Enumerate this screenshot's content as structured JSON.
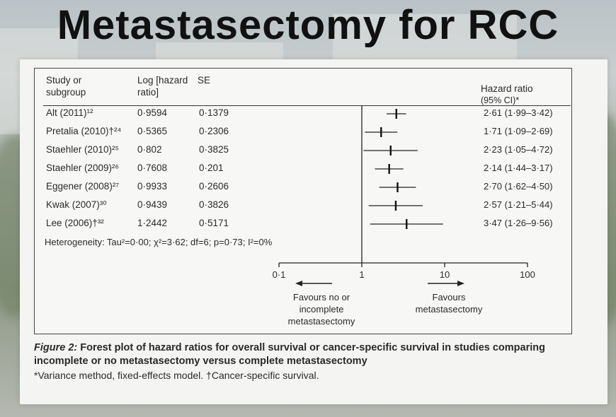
{
  "slide": {
    "title": "Metastasectomy for RCC"
  },
  "table": {
    "headers": {
      "study": [
        "Study or",
        "subgroup"
      ],
      "log_hr": [
        "Log [hazard",
        "ratio]"
      ],
      "se": "SE",
      "hr": [
        "Hazard ratio",
        "(95% CI)*"
      ]
    },
    "rows": [
      {
        "study": "Alt (2011)¹²",
        "log_hr": "0·9594",
        "se": "0·1379",
        "hr_ci": "2·61 (1·99–3·42)"
      },
      {
        "study": "Pretalia (2010)†²⁴",
        "log_hr": "0·5365",
        "se": "0·2306",
        "hr_ci": "1·71 (1·09–2·69)"
      },
      {
        "study": "Staehler (2010)²⁵",
        "log_hr": "0·802",
        "se": "0·3825",
        "hr_ci": "2·23 (1·05–4·72)"
      },
      {
        "study": "Staehler (2009)²⁶",
        "log_hr": "0·7608",
        "se": "0·201",
        "hr_ci": "2·14 (1·44–3·17)"
      },
      {
        "study": "Eggener (2008)²⁷",
        "log_hr": "0·9933",
        "se": "0·2606",
        "hr_ci": "2·70 (1·62–4·50)"
      },
      {
        "study": "Kwak (2007)³⁰",
        "log_hr": "0·9439",
        "se": "0·3826",
        "hr_ci": "2·57 (1·21–5·44)"
      },
      {
        "study": "Lee (2006)†³²",
        "log_hr": "1·2442",
        "se": "0·5171",
        "hr_ci": "3·47 (1·26–9·56)"
      }
    ],
    "heterogeneity": "Heterogeneity: Tau²=0·00; χ²=3·62; df=6; p=0·73; I²=0%"
  },
  "chart_data": {
    "type": "forest",
    "x_scale": "log",
    "xlim": [
      0.1,
      100
    ],
    "x_ticks": [
      0.1,
      1,
      10,
      100
    ],
    "x_tick_labels": [
      "0·1",
      "1",
      "10",
      "100"
    ],
    "reference_line": 1,
    "points": [
      {
        "study": "Alt (2011)",
        "hr": 2.61,
        "lo": 1.99,
        "hi": 3.42
      },
      {
        "study": "Pretalia (2010)",
        "hr": 1.71,
        "lo": 1.09,
        "hi": 2.69
      },
      {
        "study": "Staehler (2010)",
        "hr": 2.23,
        "lo": 1.05,
        "hi": 4.72
      },
      {
        "study": "Staehler (2009)",
        "hr": 2.14,
        "lo": 1.44,
        "hi": 3.17
      },
      {
        "study": "Eggener (2008)",
        "hr": 2.7,
        "lo": 1.62,
        "hi": 4.5
      },
      {
        "study": "Kwak (2007)",
        "hr": 2.57,
        "lo": 1.21,
        "hi": 5.44
      },
      {
        "study": "Lee (2006)",
        "hr": 3.47,
        "lo": 1.26,
        "hi": 9.56
      }
    ],
    "favours_left": [
      "Favours no or",
      "incomplete",
      "metastasectomy"
    ],
    "favours_right": [
      "Favours",
      "metastasectomy"
    ]
  },
  "caption": {
    "figure_label": "Figure 2:",
    "text": "Forest plot of hazard ratios for overall survival or cancer-specific survival in studies comparing incomplete or no metastasectomy versus complete metastasectomy",
    "note": "*Variance method, fixed-effects model. †Cancer-specific survival."
  }
}
